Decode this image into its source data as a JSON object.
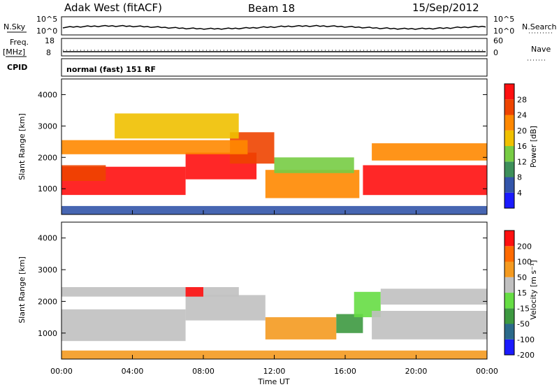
{
  "header": {
    "site": "Adak West (fitACF)",
    "beam": "Beam 18",
    "date": "15/Sep/2012"
  },
  "strip_panels": {
    "nsky_label": "N.Sky",
    "nsky_ticks": [
      "10^5",
      "10^0"
    ],
    "nsearch_label": "N.Search",
    "nsearch_ticks": [
      "10^5",
      "10^0"
    ],
    "freq_label": "Freq.",
    "freq_unit": "[MHz]",
    "freq_ticks": [
      "18",
      "8"
    ],
    "nave_label": "Nave",
    "nave_ticks": [
      "60",
      "0"
    ],
    "cpid_label": "CPID",
    "cpid_text": "normal (fast) 151 RF"
  },
  "axes": {
    "xlabel": "Time UT",
    "x_ticks": [
      "00:00",
      "04:00",
      "08:00",
      "12:00",
      "16:00",
      "20:00",
      "00:00"
    ],
    "ylabel": "Slant Range [km]",
    "y_ticks": [
      "1000",
      "2000",
      "3000",
      "4000"
    ]
  },
  "chart_data": [
    {
      "type": "heatmap",
      "name": "power",
      "x_range_hours": [
        0,
        24
      ],
      "y_range_km": [
        180,
        4500
      ],
      "colorbar_label": "Power [dB]",
      "colorbar_ticks": [
        "4",
        "8",
        "12",
        "16",
        "20",
        "24",
        "28"
      ],
      "colors": [
        "#1a1aff",
        "#3355aa",
        "#3d8f5a",
        "#77cc44",
        "#f0c000",
        "#ff8800",
        "#ee4400",
        "#ff1010"
      ],
      "regions": [
        {
          "t": [
            0.0,
            7.0
          ],
          "r": [
            800,
            1700
          ],
          "c": 7
        },
        {
          "t": [
            0.0,
            2.5
          ],
          "r": [
            1250,
            1750
          ],
          "c": 6
        },
        {
          "t": [
            7.0,
            11.0
          ],
          "r": [
            1300,
            2150
          ],
          "c": 7
        },
        {
          "t": [
            9.5,
            12.0
          ],
          "r": [
            1800,
            2800
          ],
          "c": 6
        },
        {
          "t": [
            0.0,
            10.5
          ],
          "r": [
            2100,
            2550
          ],
          "c": 5
        },
        {
          "t": [
            3.0,
            10.0
          ],
          "r": [
            2600,
            3400
          ],
          "c": 4
        },
        {
          "t": [
            11.5,
            16.8
          ],
          "r": [
            700,
            1600
          ],
          "c": 5
        },
        {
          "t": [
            12.0,
            16.5
          ],
          "r": [
            1500,
            2000
          ],
          "c": 3
        },
        {
          "t": [
            17.0,
            24.0
          ],
          "r": [
            800,
            1750
          ],
          "c": 7
        },
        {
          "t": [
            17.5,
            24.0
          ],
          "r": [
            1900,
            2450
          ],
          "c": 5
        },
        {
          "t": [
            0.0,
            24.0
          ],
          "r": [
            180,
            450
          ],
          "c": 1
        }
      ]
    },
    {
      "type": "heatmap",
      "name": "velocity",
      "x_range_hours": [
        0,
        24
      ],
      "y_range_km": [
        180,
        4500
      ],
      "colorbar_label": "Velocity [m s⁻¹]",
      "colorbar_ticks": [
        "200",
        "100",
        "50",
        "15",
        "-15",
        "-50",
        "-100",
        "-200"
      ],
      "colors": [
        "#1a1aff",
        "#2b6a8a",
        "#3d9940",
        "#66dd44",
        "#c0c0c0",
        "#f49a20",
        "#ff6a00",
        "#ff1010"
      ],
      "regions": [
        {
          "t": [
            0.0,
            7.0
          ],
          "r": [
            750,
            1750
          ],
          "c": 4
        },
        {
          "t": [
            7.0,
            11.5
          ],
          "r": [
            1400,
            2200
          ],
          "c": 4
        },
        {
          "t": [
            0.0,
            10.0
          ],
          "r": [
            2150,
            2450
          ],
          "c": 4
        },
        {
          "t": [
            7.0,
            8.0
          ],
          "r": [
            2150,
            2450
          ],
          "c": 7
        },
        {
          "t": [
            11.5,
            15.5
          ],
          "r": [
            800,
            1500
          ],
          "c": 5
        },
        {
          "t": [
            15.5,
            17.0
          ],
          "r": [
            1000,
            1600
          ],
          "c": 2
        },
        {
          "t": [
            16.5,
            18.0
          ],
          "r": [
            1500,
            2300
          ],
          "c": 3
        },
        {
          "t": [
            17.5,
            24.0
          ],
          "r": [
            800,
            1700
          ],
          "c": 4
        },
        {
          "t": [
            18.0,
            24.0
          ],
          "r": [
            1900,
            2400
          ],
          "c": 4
        },
        {
          "t": [
            0.0,
            24.0
          ],
          "r": [
            180,
            450
          ],
          "c": 5
        }
      ]
    }
  ]
}
